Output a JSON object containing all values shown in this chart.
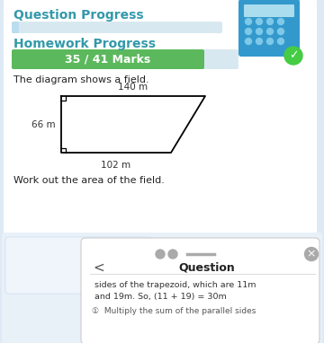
{
  "bg_color": "#ddeaf5",
  "white_panel_color": "#ffffff",
  "title_text": "Question Progress",
  "title_color": "#3399aa",
  "progress_bar_bg": "#d8e8f0",
  "progress_bar_fill": "#5cb85c",
  "progress_text": "35 / 41 Marks",
  "progress_text_color": "#ffffff",
  "homework_label": "Homework Progress",
  "homework_color": "#3399aa",
  "diagram_text": "The diagram shows a field.",
  "work_text": "Work out the area of the field.",
  "label_top": "140 m",
  "label_bottom": "102 m",
  "label_side": "66 m",
  "bottom_panel_color": "#e8f0f8",
  "bottom_sub_color": "#f0f5fc",
  "question_label": "Question",
  "line1": "sides of the trapezoid, which are 11m",
  "line2": "and 19m. So, (11 + 19) = 30m",
  "line3": "①  Multiply the sum of the parallel sides",
  "calc_color": "#3399cc",
  "dot_color": "#7ec8e8",
  "check_color": "#44cc44"
}
